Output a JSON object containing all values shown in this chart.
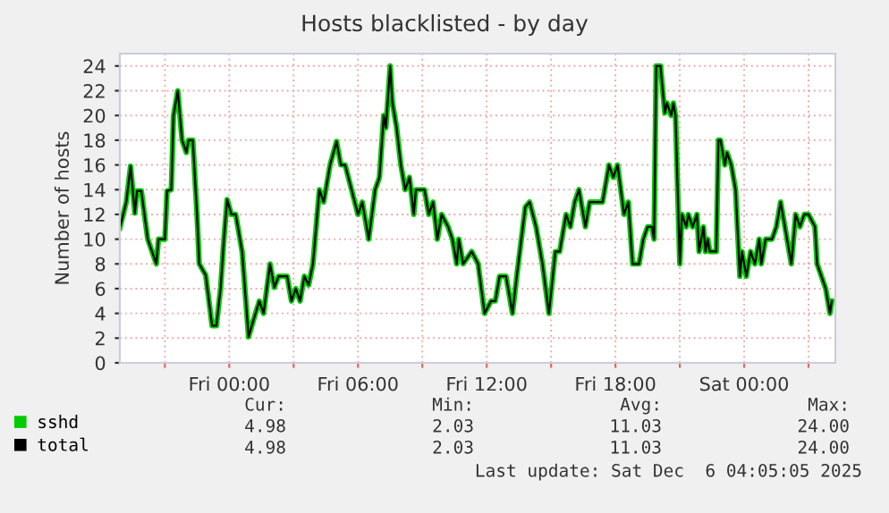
{
  "chart_data": {
    "type": "line",
    "title": "Hosts blacklisted - by day",
    "ylabel": "Number of hosts",
    "x": [
      "2025-12-04T18:54",
      "2025-12-04T19:12",
      "2025-12-04T19:24",
      "2025-12-04T19:36",
      "2025-12-04T19:42",
      "2025-12-04T19:54",
      "2025-12-04T20:12",
      "2025-12-04T20:36",
      "2025-12-04T20:42",
      "2025-12-04T21:00",
      "2025-12-04T21:06",
      "2025-12-04T21:18",
      "2025-12-04T21:24",
      "2025-12-04T21:36",
      "2025-12-04T21:48",
      "2025-12-04T22:00",
      "2025-12-04T22:06",
      "2025-12-04T22:18",
      "2025-12-04T22:30",
      "2025-12-04T22:36",
      "2025-12-04T22:54",
      "2025-12-04T23:12",
      "2025-12-04T23:24",
      "2025-12-04T23:36",
      "2025-12-04T23:45",
      "2025-12-04T23:54",
      "2025-12-05T00:06",
      "2025-12-05T00:18",
      "2025-12-05T00:36",
      "2025-12-05T00:54",
      "2025-12-05T01:06",
      "2025-12-05T01:24",
      "2025-12-05T01:36",
      "2025-12-05T01:54",
      "2025-12-05T02:06",
      "2025-12-05T02:18",
      "2025-12-05T02:42",
      "2025-12-05T02:54",
      "2025-12-05T03:06",
      "2025-12-05T03:18",
      "2025-12-05T03:30",
      "2025-12-05T03:42",
      "2025-12-05T03:54",
      "2025-12-05T04:06",
      "2025-12-05T04:12",
      "2025-12-05T04:24",
      "2025-12-05T04:42",
      "2025-12-05T05:00",
      "2025-12-05T05:12",
      "2025-12-05T05:24",
      "2025-12-05T05:42",
      "2025-12-05T06:00",
      "2025-12-05T06:12",
      "2025-12-05T06:30",
      "2025-12-05T06:48",
      "2025-12-05T07:00",
      "2025-12-05T07:12",
      "2025-12-05T07:18",
      "2025-12-05T07:30",
      "2025-12-05T07:36",
      "2025-12-05T07:48",
      "2025-12-05T08:00",
      "2025-12-05T08:12",
      "2025-12-05T08:24",
      "2025-12-05T08:36",
      "2025-12-05T08:42",
      "2025-12-05T09:06",
      "2025-12-05T09:18",
      "2025-12-05T09:30",
      "2025-12-05T09:42",
      "2025-12-05T09:54",
      "2025-12-05T10:12",
      "2025-12-05T10:24",
      "2025-12-05T10:36",
      "2025-12-05T10:42",
      "2025-12-05T10:54",
      "2025-12-05T11:18",
      "2025-12-05T11:36",
      "2025-12-05T11:54",
      "2025-12-05T12:12",
      "2025-12-05T12:24",
      "2025-12-05T12:36",
      "2025-12-05T12:54",
      "2025-12-05T13:12",
      "2025-12-05T13:24",
      "2025-12-05T13:48",
      "2025-12-05T14:00",
      "2025-12-05T14:18",
      "2025-12-05T14:36",
      "2025-12-05T14:54",
      "2025-12-05T15:12",
      "2025-12-05T15:24",
      "2025-12-05T15:42",
      "2025-12-05T15:54",
      "2025-12-05T16:06",
      "2025-12-05T16:18",
      "2025-12-05T16:36",
      "2025-12-05T16:48",
      "2025-12-05T17:24",
      "2025-12-05T17:42",
      "2025-12-05T17:54",
      "2025-12-05T18:06",
      "2025-12-05T18:24",
      "2025-12-05T18:36",
      "2025-12-05T18:48",
      "2025-12-05T19:06",
      "2025-12-05T19:18",
      "2025-12-05T19:30",
      "2025-12-05T19:42",
      "2025-12-05T19:48",
      "2025-12-05T19:54",
      "2025-12-05T20:06",
      "2025-12-05T20:18",
      "2025-12-05T20:24",
      "2025-12-05T20:36",
      "2025-12-05T20:42",
      "2025-12-05T20:48",
      "2025-12-05T21:00",
      "2025-12-05T21:06",
      "2025-12-05T21:18",
      "2025-12-05T21:24",
      "2025-12-05T21:36",
      "2025-12-05T21:48",
      "2025-12-05T21:54",
      "2025-12-05T22:06",
      "2025-12-05T22:12",
      "2025-12-05T22:18",
      "2025-12-05T22:24",
      "2025-12-05T22:42",
      "2025-12-05T22:48",
      "2025-12-05T22:54",
      "2025-12-05T23:06",
      "2025-12-05T23:12",
      "2025-12-05T23:24",
      "2025-12-05T23:36",
      "2025-12-05T23:48",
      "2025-12-05T23:54",
      "2025-12-06T00:06",
      "2025-12-06T00:18",
      "2025-12-06T00:30",
      "2025-12-06T00:42",
      "2025-12-06T00:48",
      "2025-12-06T01:00",
      "2025-12-06T01:18",
      "2025-12-06T01:30",
      "2025-12-06T01:42",
      "2025-12-06T01:54",
      "2025-12-06T02:12",
      "2025-12-06T02:24",
      "2025-12-06T02:36",
      "2025-12-06T02:48",
      "2025-12-06T03:00",
      "2025-12-06T03:18",
      "2025-12-06T03:24",
      "2025-12-06T03:36",
      "2025-12-06T03:48",
      "2025-12-06T03:54",
      "2025-12-06T04:00",
      "2025-12-06T04:05"
    ],
    "series": [
      {
        "name": "sshd",
        "color": "#00cc00",
        "values": [
          10.9,
          13,
          15.9,
          12.1,
          13.9,
          13.9,
          10,
          8,
          10,
          10,
          13.9,
          14,
          20,
          22,
          18,
          17,
          18,
          18,
          11.9,
          8,
          7.1,
          3,
          3,
          6.1,
          10,
          13.2,
          12,
          12,
          9,
          2.1,
          3.3,
          5,
          4,
          8,
          6.1,
          7,
          7,
          5,
          6,
          5,
          7,
          6.3,
          8,
          12,
          14,
          13,
          16,
          17.9,
          16,
          16,
          14,
          12,
          13,
          10,
          14,
          15,
          20,
          19,
          24,
          21.1,
          19,
          16,
          14,
          15,
          12,
          14,
          14,
          12,
          13,
          10,
          12,
          11,
          10,
          8,
          10,
          8,
          9,
          8,
          4,
          5,
          5,
          7,
          7,
          4,
          7,
          12.6,
          13,
          11,
          8,
          4,
          9,
          9,
          12,
          11,
          13,
          14,
          11,
          13,
          13,
          16,
          15,
          16,
          12,
          13,
          8,
          8,
          10,
          11,
          11,
          10,
          24,
          24,
          20.2,
          21,
          20,
          21,
          20,
          8,
          12,
          11,
          12,
          11,
          12,
          9,
          11,
          9,
          10,
          9,
          9,
          18,
          18,
          16,
          17,
          16,
          14,
          7,
          9,
          7,
          9,
          8,
          10,
          8,
          10,
          10,
          11,
          13,
          11,
          8,
          12,
          11,
          12,
          12,
          11,
          8,
          7,
          6,
          5,
          4,
          5
        ]
      },
      {
        "name": "total",
        "color": "#000000",
        "values": [
          10.9,
          13,
          15.9,
          12.1,
          13.9,
          13.9,
          10,
          8,
          10,
          10,
          13.9,
          14,
          20,
          22,
          18,
          17,
          18,
          18,
          11.9,
          8,
          7.1,
          3,
          3,
          6.1,
          10,
          13.2,
          12,
          12,
          9,
          2.1,
          3.3,
          5,
          4,
          8,
          6.1,
          7,
          7,
          5,
          6,
          5,
          7,
          6.3,
          8,
          12,
          14,
          13,
          16,
          17.9,
          16,
          16,
          14,
          12,
          13,
          10,
          14,
          15,
          20,
          19,
          24,
          21.1,
          19,
          16,
          14,
          15,
          12,
          14,
          14,
          12,
          13,
          10,
          12,
          11,
          10,
          8,
          10,
          8,
          9,
          8,
          4,
          5,
          5,
          7,
          7,
          4,
          7,
          12.6,
          13,
          11,
          8,
          4,
          9,
          9,
          12,
          11,
          13,
          14,
          11,
          13,
          13,
          16,
          15,
          16,
          12,
          13,
          8,
          8,
          10,
          11,
          11,
          10,
          24,
          24,
          20.2,
          21,
          20,
          21,
          20,
          8,
          12,
          11,
          12,
          11,
          12,
          9,
          11,
          9,
          10,
          9,
          9,
          18,
          18,
          16,
          17,
          16,
          14,
          7,
          9,
          7,
          9,
          8,
          10,
          8,
          10,
          10,
          11,
          13,
          11,
          8,
          12,
          11,
          12,
          12,
          11,
          8,
          7,
          6,
          5,
          4,
          5
        ]
      }
    ],
    "xlim": [
      "2025-12-04T18:54",
      "2025-12-06T04:15"
    ],
    "xticks": [
      {
        "value": "2025-12-04T21:00",
        "label": null
      },
      {
        "value": "2025-12-05T00:00",
        "label": "Fri 00:00"
      },
      {
        "value": "2025-12-05T03:00",
        "label": null
      },
      {
        "value": "2025-12-05T06:00",
        "label": "Fri 06:00"
      },
      {
        "value": "2025-12-05T09:00",
        "label": null
      },
      {
        "value": "2025-12-05T12:00",
        "label": "Fri 12:00"
      },
      {
        "value": "2025-12-05T15:00",
        "label": null
      },
      {
        "value": "2025-12-05T18:00",
        "label": "Fri 18:00"
      },
      {
        "value": "2025-12-05T21:00",
        "label": null
      },
      {
        "value": "2025-12-06T00:00",
        "label": "Sat 00:00"
      },
      {
        "value": "2025-12-06T03:00",
        "label": null
      }
    ],
    "ylim": [
      0,
      25
    ],
    "yticks": [
      0,
      2,
      4,
      6,
      8,
      10,
      12,
      14,
      16,
      18,
      20,
      22,
      24
    ],
    "grid": true,
    "legend": "bottom left",
    "marker": "none",
    "line_style": "solid",
    "annotations": [
      "Cur:",
      "Min:",
      "Avg:",
      "Max:",
      "4.98",
      "2.03",
      "11.03",
      "24.00",
      "4.98",
      "2.03",
      "11.03",
      "24.00",
      "Last update: Sat Dec  6 04:05:05 2025"
    ]
  }
}
